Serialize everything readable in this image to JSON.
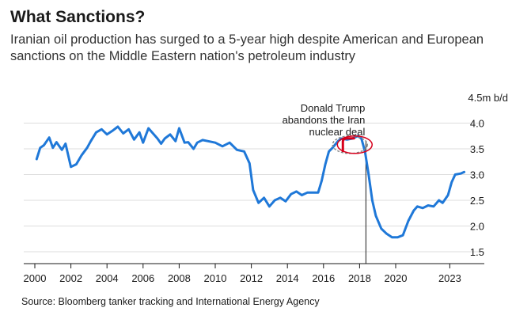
{
  "header": {
    "title": "What Sanctions?",
    "subtitle": "Iranian oil production has surged to a 5-year high despite American and European sanctions on the Middle Eastern nation's petroleum industry"
  },
  "source": "Source: Bloomberg tanker tracking and International Energy Agency",
  "annotation": {
    "line1": "Donald Trump",
    "line2": "abandons the Iran",
    "line3": "nuclear deal",
    "date": 2018.35
  },
  "colors": {
    "series": "#1f78d8",
    "marker": "#d6001c",
    "grid": "#dddddd"
  },
  "chart_data": {
    "type": "line",
    "title": "What Sanctions?",
    "ylabel_unit": "4.5m b/d",
    "ylim": [
      1.3,
      4.7
    ],
    "xlim": [
      2000,
      2024.6
    ],
    "xticks": [
      {
        "value": 2000,
        "label": "2000"
      },
      {
        "value": 2002,
        "label": "2002"
      },
      {
        "value": 2004,
        "label": "2004"
      },
      {
        "value": 2006,
        "label": "2006"
      },
      {
        "value": 2008,
        "label": "2008"
      },
      {
        "value": 2010,
        "label": "2010"
      },
      {
        "value": 2012,
        "label": "2012"
      },
      {
        "value": 2014,
        "label": "2014"
      },
      {
        "value": 2016,
        "label": "2016"
      },
      {
        "value": 2018,
        "label": "2018"
      },
      {
        "value": 2020,
        "label": "2020"
      },
      {
        "value": 2023,
        "label": "2023"
      }
    ],
    "yticks": [
      {
        "value": 4.5,
        "label": "4.5m b/d"
      },
      {
        "value": 4.0,
        "label": "4.0"
      },
      {
        "value": 3.5,
        "label": "3.5"
      },
      {
        "value": 3.0,
        "label": "3.0"
      },
      {
        "value": 2.5,
        "label": "2.5"
      },
      {
        "value": 2.0,
        "label": "2.0"
      },
      {
        "value": 1.5,
        "label": "1.5"
      }
    ],
    "grid": "horizontal",
    "series": [
      {
        "x": [
          2000.1,
          2000.3,
          2000.5,
          2000.8,
          2001.0,
          2001.2,
          2001.5,
          2001.7,
          2002.0,
          2002.3,
          2002.6,
          2002.9,
          2003.1,
          2003.4,
          2003.7,
          2004.0,
          2004.3,
          2004.6,
          2004.9,
          2005.2,
          2005.5,
          2005.8,
          2006.0,
          2006.3,
          2006.5,
          2006.8,
          2007.0,
          2007.2,
          2007.5,
          2007.8,
          2008.0,
          2008.3,
          2008.5,
          2008.8,
          2009.0,
          2009.3,
          2009.6,
          2010.0,
          2010.4,
          2010.8,
          2011.2,
          2011.6,
          2011.9,
          2012.1,
          2012.4,
          2012.7,
          2013.0,
          2013.3,
          2013.6,
          2013.9,
          2014.2,
          2014.5,
          2014.8,
          2015.1,
          2015.4,
          2015.7,
          2015.9,
          2016.1,
          2016.3,
          2016.5,
          2016.8,
          2017.0,
          2017.3,
          2017.6,
          2017.9,
          2018.1,
          2018.3,
          2018.5,
          2018.7,
          2018.9,
          2019.2,
          2019.5,
          2019.8,
          2020.1,
          2020.4,
          2020.7,
          2021.0,
          2021.2,
          2021.5,
          2021.8,
          2022.1,
          2022.4,
          2022.6,
          2022.9,
          2023.1,
          2023.3,
          2023.6,
          2023.8
        ],
        "y": [
          3.3,
          3.52,
          3.57,
          3.72,
          3.52,
          3.63,
          3.48,
          3.6,
          3.15,
          3.2,
          3.38,
          3.52,
          3.65,
          3.82,
          3.88,
          3.78,
          3.85,
          3.93,
          3.8,
          3.88,
          3.68,
          3.82,
          3.62,
          3.9,
          3.82,
          3.7,
          3.6,
          3.7,
          3.78,
          3.65,
          3.9,
          3.62,
          3.63,
          3.5,
          3.62,
          3.67,
          3.65,
          3.62,
          3.55,
          3.62,
          3.48,
          3.45,
          3.22,
          2.7,
          2.45,
          2.55,
          2.38,
          2.5,
          2.55,
          2.48,
          2.62,
          2.67,
          2.6,
          2.65,
          2.65,
          2.65,
          2.88,
          3.2,
          3.45,
          3.52,
          3.65,
          3.7,
          3.68,
          3.7,
          3.75,
          3.7,
          3.45,
          3.0,
          2.5,
          2.2,
          1.95,
          1.85,
          1.78,
          1.78,
          1.82,
          2.1,
          2.3,
          2.38,
          2.35,
          2.4,
          2.38,
          2.5,
          2.45,
          2.6,
          2.85,
          3.0,
          3.02,
          3.05
        ]
      }
    ]
  }
}
